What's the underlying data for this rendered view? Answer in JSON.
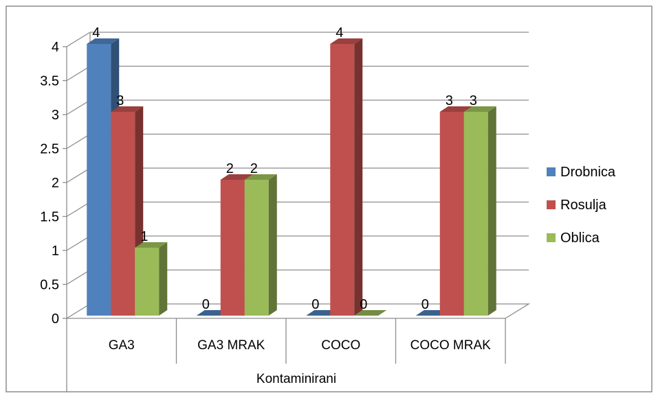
{
  "chart_data": {
    "type": "bar",
    "categories": [
      "GA3",
      "GA3 MRAK",
      "COCO",
      "COCO MRAK"
    ],
    "group_label": "Kontaminirani",
    "series": [
      {
        "name": "Drobnica",
        "values": [
          4,
          0,
          0,
          0
        ],
        "color": "#4f81bd"
      },
      {
        "name": "Rosulja",
        "values": [
          3,
          2,
          4,
          3
        ],
        "color": "#c0504d"
      },
      {
        "name": "Oblica",
        "values": [
          1,
          2,
          0,
          3
        ],
        "color": "#9bbb59"
      }
    ],
    "yticks": [
      "0",
      "0.5",
      "1",
      "1.5",
      "2",
      "2.5",
      "3",
      "3.5",
      "4"
    ],
    "ylim": [
      0,
      4
    ],
    "grid": true,
    "legend_position": "right",
    "style": "3d-clustered-column"
  }
}
